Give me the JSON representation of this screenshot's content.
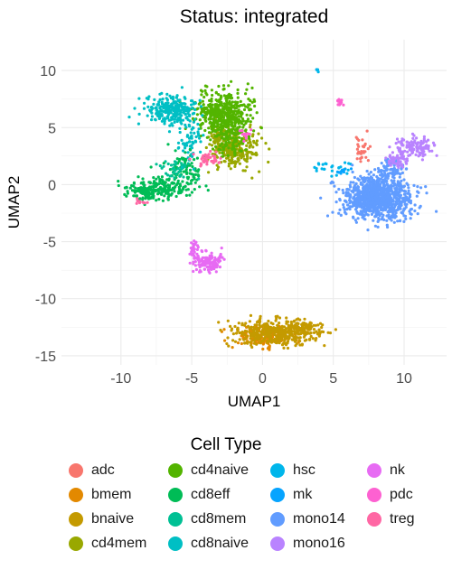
{
  "chart_data": {
    "type": "scatter",
    "title": "Status: integrated",
    "xlabel": "UMAP1",
    "ylabel": "UMAP2",
    "xlim": [
      -14.2,
      13.0
    ],
    "ylim": [
      -15.8,
      12.7
    ],
    "xticks": [
      -10,
      -5,
      0,
      5,
      10
    ],
    "yticks": [
      -15,
      -10,
      -5,
      0,
      5,
      10
    ],
    "xtick_labels": [
      "-10",
      "-5",
      "0",
      "5",
      "10"
    ],
    "ytick_labels": [
      "-15",
      "-10",
      "-5",
      "0",
      "5",
      "10"
    ],
    "grid": true,
    "legend_position": "bottom",
    "legend_title": "Cell Type",
    "series": [
      {
        "name": "adc",
        "color": "#F8766D",
        "clusters": [
          {
            "x": 7.0,
            "y": 3.0,
            "sx": 0.25,
            "sy": 0.7,
            "n": 30
          }
        ]
      },
      {
        "name": "bmem",
        "color": "#E38900",
        "clusters": [
          {
            "x": 0.0,
            "y": -13.3,
            "sx": 1.1,
            "sy": 0.45,
            "n": 160
          }
        ]
      },
      {
        "name": "bnaive",
        "color": "#C49A00",
        "clusters": [
          {
            "x": 0.8,
            "y": -13.0,
            "sx": 1.5,
            "sy": 0.55,
            "n": 400
          },
          {
            "x": 2.8,
            "y": -12.6,
            "sx": 0.8,
            "sy": 0.35,
            "n": 90
          }
        ]
      },
      {
        "name": "cd4mem",
        "color": "#99A800",
        "clusters": [
          {
            "x": -2.1,
            "y": 3.2,
            "sx": 0.8,
            "sy": 0.9,
            "n": 300
          },
          {
            "x": -3.0,
            "y": 4.2,
            "sx": 0.4,
            "sy": 0.6,
            "n": 60
          }
        ]
      },
      {
        "name": "cd4naive",
        "color": "#53B400",
        "clusters": [
          {
            "x": -2.7,
            "y": 6.2,
            "sx": 1.0,
            "sy": 1.0,
            "n": 450
          },
          {
            "x": -2.3,
            "y": 4.2,
            "sx": 0.6,
            "sy": 0.8,
            "n": 120
          }
        ]
      },
      {
        "name": "cd8eff",
        "color": "#00BC56",
        "clusters": [
          {
            "x": -8.3,
            "y": -0.6,
            "sx": 0.7,
            "sy": 0.4,
            "n": 130
          },
          {
            "x": -6.8,
            "y": -0.2,
            "sx": 0.9,
            "sy": 0.5,
            "n": 120
          },
          {
            "x": -5.4,
            "y": 1.3,
            "sx": 0.6,
            "sy": 0.9,
            "n": 80
          }
        ]
      },
      {
        "name": "cd8mem",
        "color": "#00C094",
        "clusters": [
          {
            "x": -6.1,
            "y": 1.3,
            "sx": 0.6,
            "sy": 0.5,
            "n": 40
          }
        ]
      },
      {
        "name": "cd8naive",
        "color": "#00BFC4",
        "clusters": [
          {
            "x": -6.3,
            "y": 6.5,
            "sx": 0.9,
            "sy": 0.6,
            "n": 260
          },
          {
            "x": -5.0,
            "y": 3.8,
            "sx": 0.4,
            "sy": 1.0,
            "n": 60
          }
        ]
      },
      {
        "name": "hsc",
        "color": "#00B6EB",
        "clusters": [
          {
            "x": 4.8,
            "y": 1.5,
            "sx": 0.7,
            "sy": 0.25,
            "n": 25
          },
          {
            "x": 3.9,
            "y": 10.0,
            "sx": 0.05,
            "sy": 0.05,
            "n": 4
          }
        ]
      },
      {
        "name": "mk",
        "color": "#06A4FF",
        "clusters": [
          {
            "x": 5.6,
            "y": 1.2,
            "sx": 0.3,
            "sy": 0.15,
            "n": 10
          }
        ]
      },
      {
        "name": "mono14",
        "color": "#619CFF",
        "clusters": [
          {
            "x": 8.2,
            "y": -1.2,
            "sx": 1.2,
            "sy": 0.9,
            "n": 900
          },
          {
            "x": 9.0,
            "y": 1.3,
            "sx": 0.5,
            "sy": 0.5,
            "n": 80
          }
        ]
      },
      {
        "name": "mono16",
        "color": "#B983FF",
        "clusters": [
          {
            "x": 10.8,
            "y": 3.3,
            "sx": 0.7,
            "sy": 0.45,
            "n": 110
          },
          {
            "x": 9.5,
            "y": 2.2,
            "sx": 0.45,
            "sy": 0.35,
            "n": 50
          }
        ]
      },
      {
        "name": "nk",
        "color": "#E76BF3",
        "clusters": [
          {
            "x": -3.8,
            "y": -6.8,
            "sx": 0.55,
            "sy": 0.4,
            "n": 150
          },
          {
            "x": -4.8,
            "y": -5.6,
            "sx": 0.2,
            "sy": 0.4,
            "n": 30
          }
        ]
      },
      {
        "name": "pdc",
        "color": "#FD61D1",
        "clusters": [
          {
            "x": 5.5,
            "y": 7.3,
            "sx": 0.15,
            "sy": 0.2,
            "n": 15
          },
          {
            "x": -1.2,
            "y": 4.5,
            "sx": 0.25,
            "sy": 0.3,
            "n": 15
          }
        ]
      },
      {
        "name": "treg",
        "color": "#FF67A4",
        "clusters": [
          {
            "x": -3.8,
            "y": 2.2,
            "sx": 0.5,
            "sy": 0.3,
            "n": 40
          },
          {
            "x": -8.5,
            "y": -1.5,
            "sx": 0.3,
            "sy": 0.2,
            "n": 10
          }
        ]
      }
    ]
  }
}
